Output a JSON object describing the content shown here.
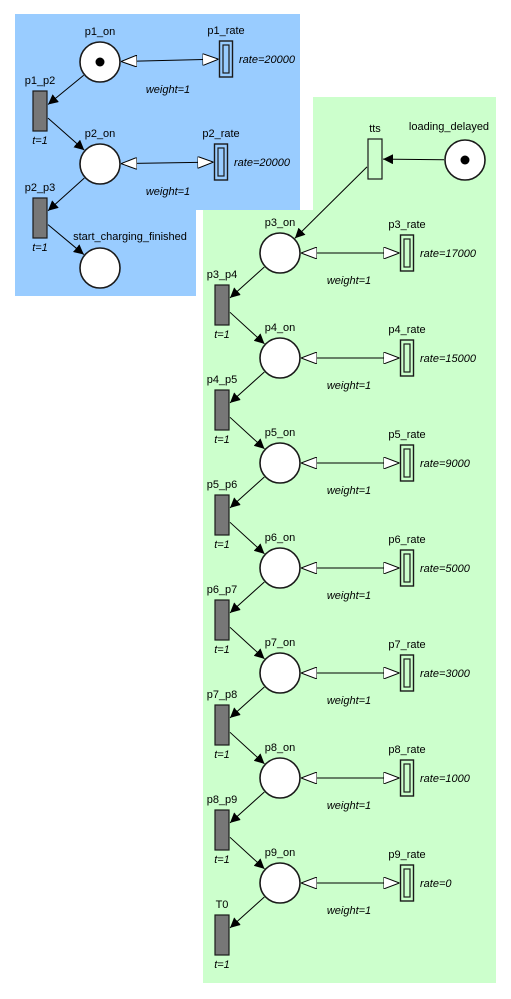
{
  "regions": [
    {
      "name": "blue-region",
      "color": "#99ccff"
    },
    {
      "name": "green-region",
      "color": "#ccffcc"
    }
  ],
  "places": [
    {
      "id": "p1_on",
      "label": "p1_on",
      "token": true
    },
    {
      "id": "p2_on",
      "label": "p2_on",
      "token": false
    },
    {
      "id": "start_charging_finished",
      "label": "start_charging_finished",
      "token": false
    },
    {
      "id": "loading_delayed",
      "label": "loading_delayed",
      "token": true
    },
    {
      "id": "p3_on",
      "label": "p3_on",
      "token": false
    },
    {
      "id": "p4_on",
      "label": "p4_on",
      "token": false
    },
    {
      "id": "p5_on",
      "label": "p5_on",
      "token": false
    },
    {
      "id": "p6_on",
      "label": "p6_on",
      "token": false
    },
    {
      "id": "p7_on",
      "label": "p7_on",
      "token": false
    },
    {
      "id": "p8_on",
      "label": "p8_on",
      "token": false
    },
    {
      "id": "p9_on",
      "label": "p9_on",
      "token": false
    }
  ],
  "transitions": [
    {
      "id": "p1_p2",
      "label": "p1_p2",
      "delay": "t=1"
    },
    {
      "id": "p2_p3",
      "label": "p2_p3",
      "delay": "t=1"
    },
    {
      "id": "p3_p4",
      "label": "p3_p4",
      "delay": "t=1"
    },
    {
      "id": "p4_p5",
      "label": "p4_p5",
      "delay": "t=1"
    },
    {
      "id": "p5_p6",
      "label": "p5_p6",
      "delay": "t=1"
    },
    {
      "id": "p6_p7",
      "label": "p6_p7",
      "delay": "t=1"
    },
    {
      "id": "p7_p8",
      "label": "p7_p8",
      "delay": "t=1"
    },
    {
      "id": "p8_p9",
      "label": "p8_p9",
      "delay": "t=1"
    },
    {
      "id": "T0",
      "label": "T0",
      "delay": "t=1"
    },
    {
      "id": "tts",
      "label": "tts",
      "delay": ""
    }
  ],
  "rate_transitions": [
    {
      "id": "p1_rate",
      "label": "p1_rate",
      "rate": "rate=20000",
      "fill": "#99ccff"
    },
    {
      "id": "p2_rate",
      "label": "p2_rate",
      "rate": "rate=20000",
      "fill": "#99ccff"
    },
    {
      "id": "p3_rate",
      "label": "p3_rate",
      "rate": "rate=17000",
      "fill": "#ccffcc"
    },
    {
      "id": "p4_rate",
      "label": "p4_rate",
      "rate": "rate=15000",
      "fill": "#ccffcc"
    },
    {
      "id": "p5_rate",
      "label": "p5_rate",
      "rate": "rate=9000",
      "fill": "#ccffcc"
    },
    {
      "id": "p6_rate",
      "label": "p6_rate",
      "rate": "rate=5000",
      "fill": "#ccffcc"
    },
    {
      "id": "p7_rate",
      "label": "p7_rate",
      "rate": "rate=3000",
      "fill": "#ccffcc"
    },
    {
      "id": "p8_rate",
      "label": "p8_rate",
      "rate": "rate=1000",
      "fill": "#ccffcc"
    },
    {
      "id": "p9_rate",
      "label": "p9_rate",
      "rate": "rate=0",
      "fill": "#ccffcc"
    }
  ],
  "test_arcs": [
    {
      "from": "p1_on",
      "to": "p1_rate",
      "weight": "weight=1"
    },
    {
      "from": "p2_on",
      "to": "p2_rate",
      "weight": "weight=1"
    },
    {
      "from": "p3_on",
      "to": "p3_rate",
      "weight": "weight=1"
    },
    {
      "from": "p4_on",
      "to": "p4_rate",
      "weight": "weight=1"
    },
    {
      "from": "p5_on",
      "to": "p5_rate",
      "weight": "weight=1"
    },
    {
      "from": "p6_on",
      "to": "p6_rate",
      "weight": "weight=1"
    },
    {
      "from": "p7_on",
      "to": "p7_rate",
      "weight": "weight=1"
    },
    {
      "from": "p8_on",
      "to": "p8_rate",
      "weight": "weight=1"
    },
    {
      "from": "p9_on",
      "to": "p9_rate",
      "weight": "weight=1"
    }
  ],
  "arcs": [
    {
      "from": "p1_on",
      "to": "p1_p2"
    },
    {
      "from": "p1_p2",
      "to": "p2_on"
    },
    {
      "from": "p2_on",
      "to": "p2_p3"
    },
    {
      "from": "p2_p3",
      "to": "start_charging_finished"
    },
    {
      "from": "loading_delayed",
      "to": "tts"
    },
    {
      "from": "tts",
      "to": "p3_on"
    },
    {
      "from": "p3_on",
      "to": "p3_p4"
    },
    {
      "from": "p3_p4",
      "to": "p4_on"
    },
    {
      "from": "p4_on",
      "to": "p4_p5"
    },
    {
      "from": "p4_p5",
      "to": "p5_on"
    },
    {
      "from": "p5_on",
      "to": "p5_p6"
    },
    {
      "from": "p5_p6",
      "to": "p6_on"
    },
    {
      "from": "p6_on",
      "to": "p6_p7"
    },
    {
      "from": "p6_p7",
      "to": "p7_on"
    },
    {
      "from": "p7_on",
      "to": "p7_p8"
    },
    {
      "from": "p7_p8",
      "to": "p8_on"
    },
    {
      "from": "p8_on",
      "to": "p8_p9"
    },
    {
      "from": "p8_p9",
      "to": "p9_on"
    },
    {
      "from": "p9_on",
      "to": "T0"
    }
  ]
}
